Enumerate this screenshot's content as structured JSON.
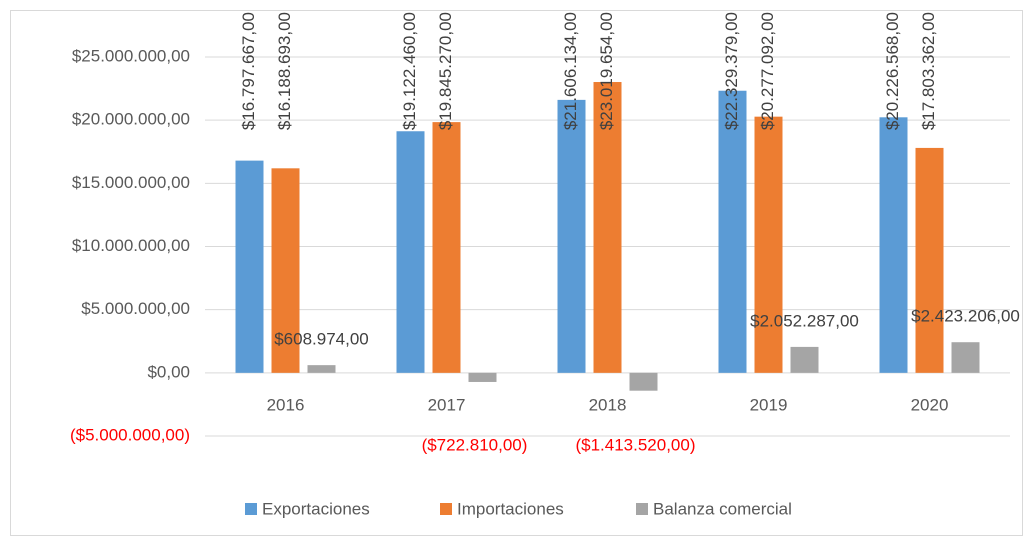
{
  "chart_data": {
    "type": "bar",
    "categories": [
      "2016",
      "2017",
      "2018",
      "2019",
      "2020"
    ],
    "series": [
      {
        "name": "Exportaciones",
        "color": "#5b9bd5",
        "values": [
          16797667,
          19122460,
          21606134,
          22329379,
          20226568
        ],
        "value_labels": [
          "$16.797.667,00",
          "$19.122.460,00",
          "$21.606.134,00",
          "$22.329.379,00",
          "$20.226.568,00"
        ]
      },
      {
        "name": "Importaciones",
        "color": "#ed7d31",
        "values": [
          16188693,
          19845270,
          23019654,
          20277092,
          17803362
        ],
        "value_labels": [
          "$16.188.693,00",
          "$19.845.270,00",
          "$23.019.654,00",
          "$20.277.092,00",
          "$17.803.362,00"
        ]
      },
      {
        "name": "Balanza comercial",
        "color": "#a5a5a5",
        "values": [
          608974,
          -722810,
          -1413520,
          2052287,
          2423206
        ],
        "value_labels": [
          "$608.974,00",
          "($722.810,00)",
          "($1.413.520,00)",
          "$2.052.287,00",
          "$2.423.206,00"
        ]
      }
    ],
    "ylim": [
      -5000000,
      25000000
    ],
    "yticks": [
      {
        "value": -5000000,
        "label": "($5.000.000,00)"
      },
      {
        "value": 0,
        "label": "$0,00"
      },
      {
        "value": 5000000,
        "label": "$5.000.000,00"
      },
      {
        "value": 10000000,
        "label": "$10.000.000,00"
      },
      {
        "value": 15000000,
        "label": "$15.000.000,00"
      },
      {
        "value": 20000000,
        "label": "$20.000.000,00"
      },
      {
        "value": 25000000,
        "label": "$25.000.000,00"
      }
    ],
    "grid": true,
    "negative_color": "#ff0000",
    "legend": "bottom"
  }
}
